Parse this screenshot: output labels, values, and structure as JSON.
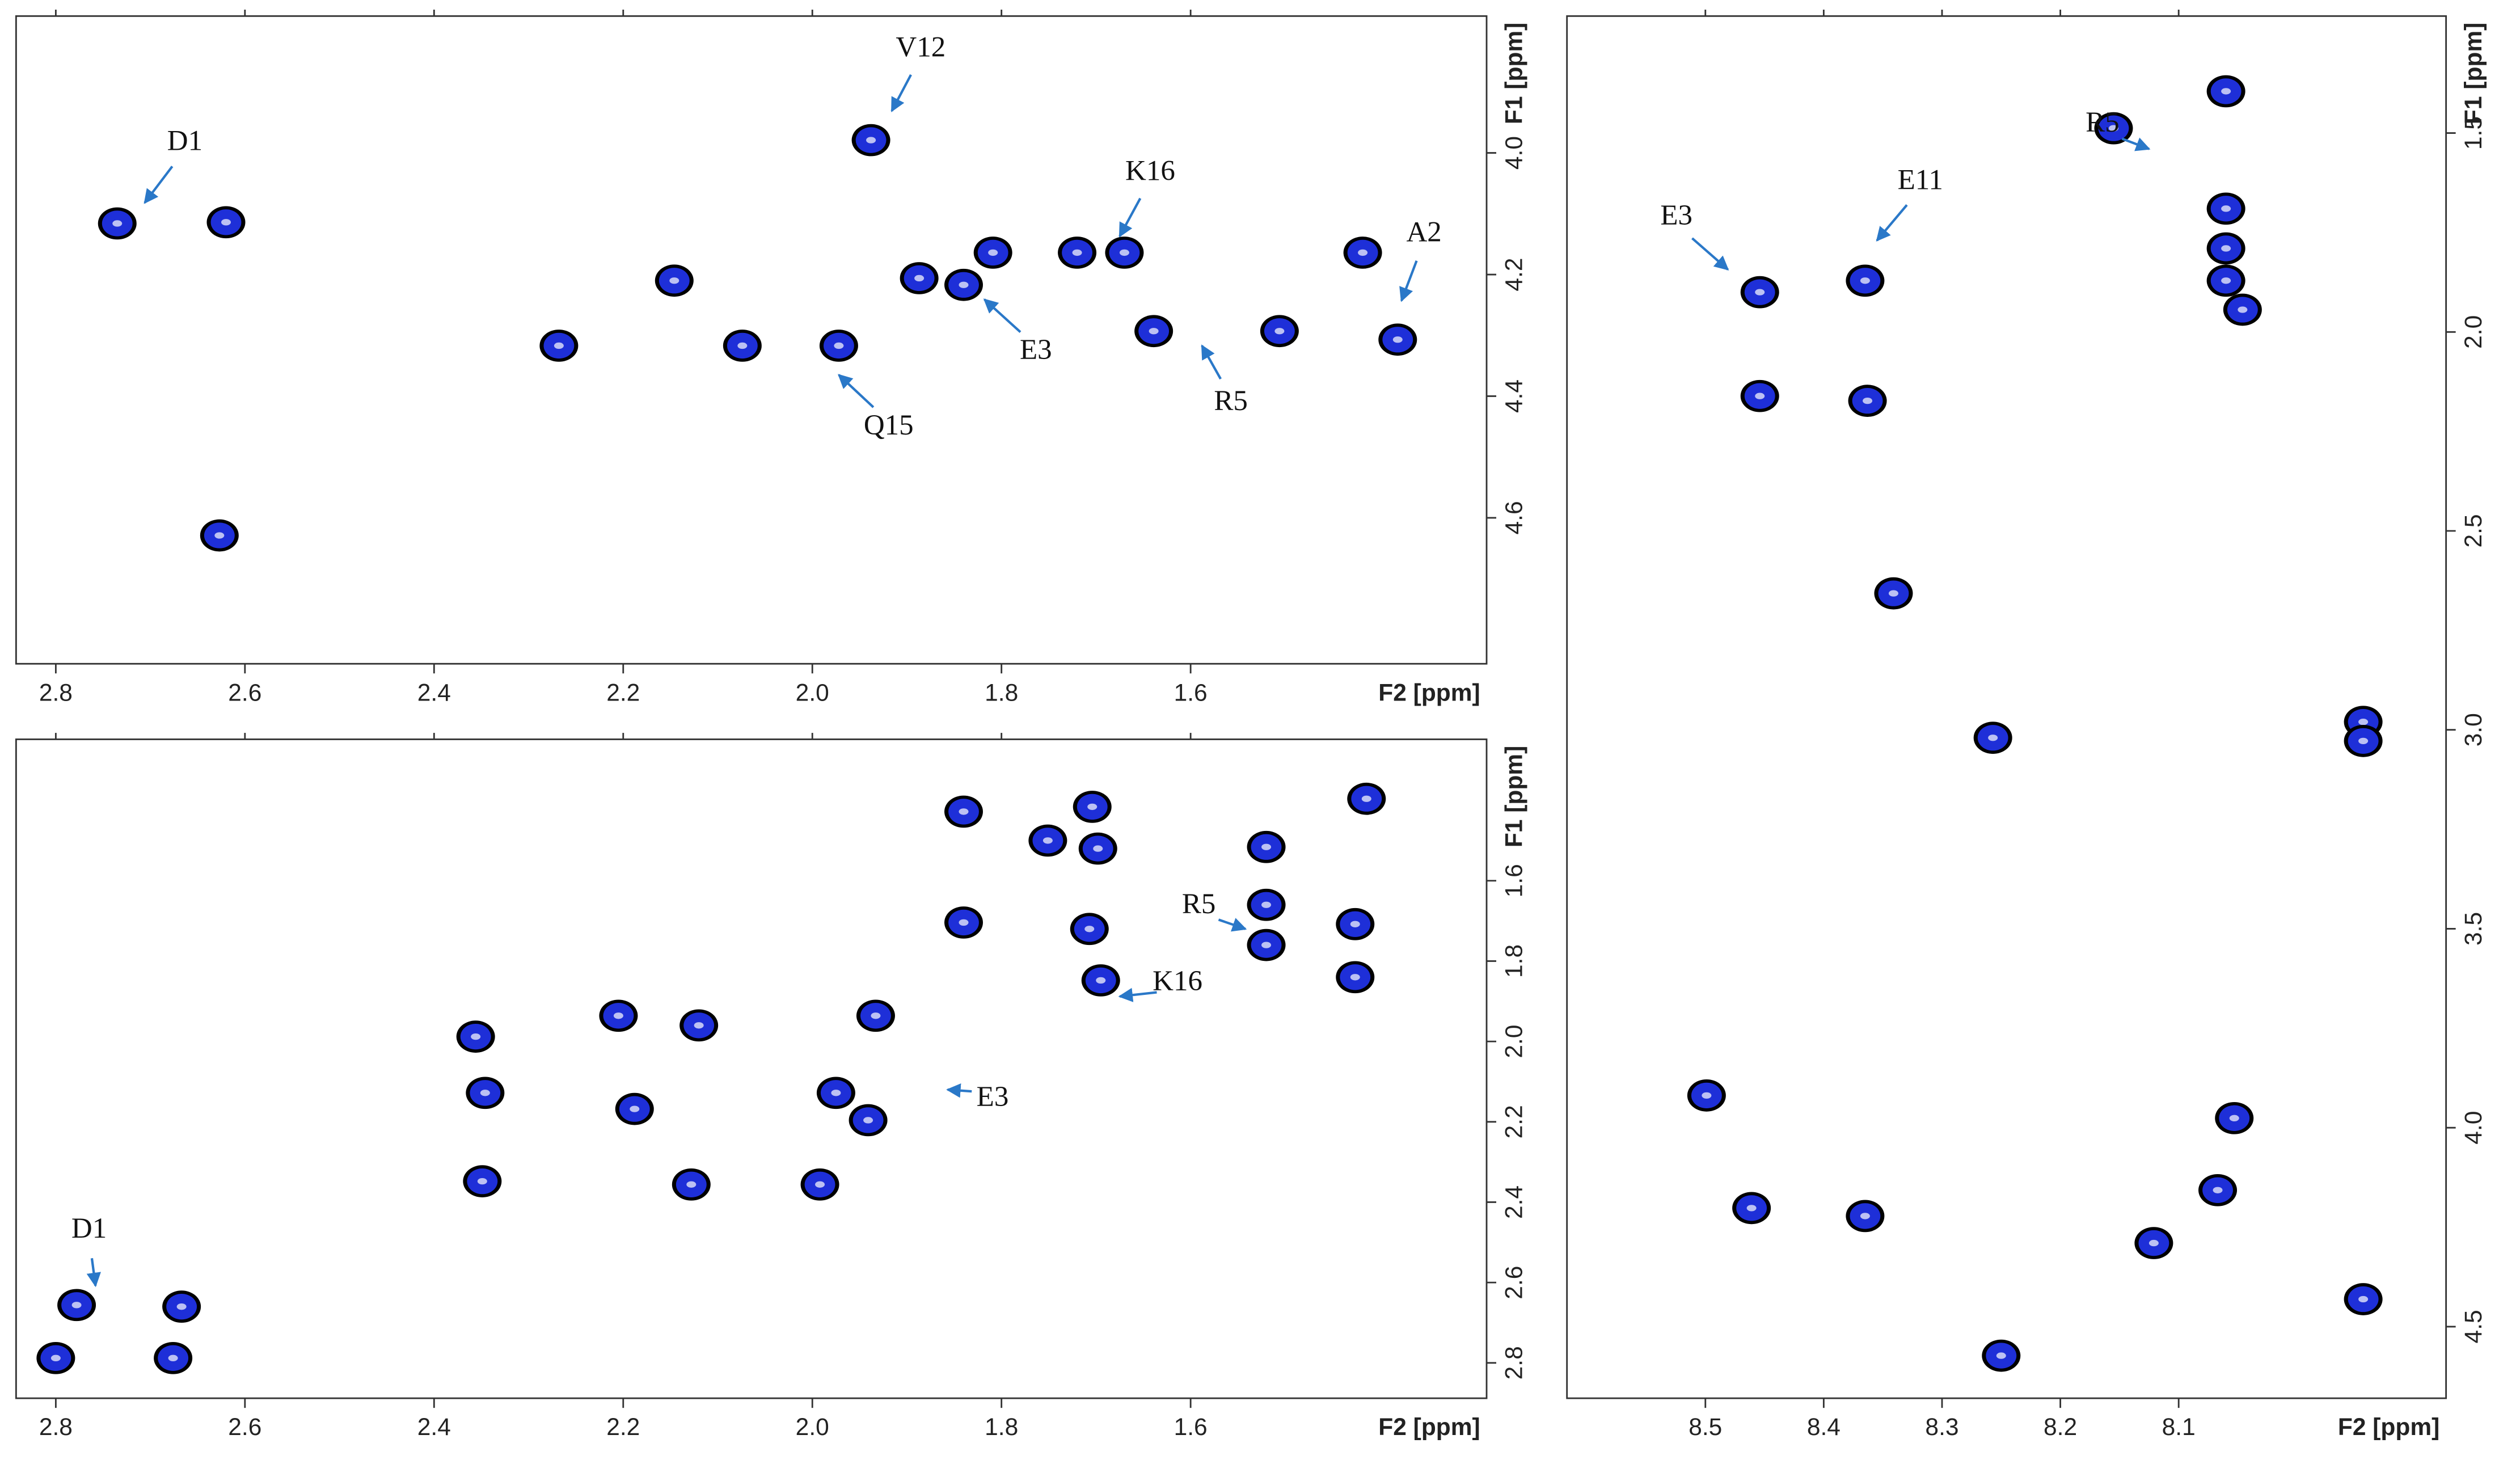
{
  "chart_data": [
    {
      "type": "scatter",
      "xlabel": "F2 [ppm]",
      "ylabel": "F1 [ppm]",
      "color": "#1e2fd8",
      "outline": "#000000",
      "xlim": [
        2.842,
        1.287
      ],
      "ylim": [
        3.775,
        4.84
      ],
      "xticks": [
        2.8,
        2.6,
        2.4,
        2.2,
        {
          "value": 2,
          "label": "2.0"
        },
        1.8,
        1.6
      ],
      "yticks": [
        {
          "value": 4,
          "label": "4.0"
        },
        4.2,
        4.4,
        4.6
      ],
      "x": [
        2.735,
        2.62,
        2.146,
        2.268,
        1.972,
        1.938,
        1.887,
        1.84,
        1.809,
        1.67,
        1.72,
        2.074,
        1.639,
        1.506,
        1.381,
        1.418,
        2.627
      ],
      "values": [
        4.116,
        4.114,
        4.21,
        4.317,
        4.317,
        3.979,
        4.206,
        4.217,
        4.164,
        4.164,
        4.164,
        4.317,
        4.293,
        4.293,
        4.307,
        4.164,
        4.629
      ],
      "annotations": [
        {
          "text": "D1",
          "x": 2.706,
          "y": 4.082
        },
        {
          "text": "V12",
          "x": 1.916,
          "y": 3.931
        },
        {
          "text": "K16",
          "x": 1.675,
          "y": 4.137
        },
        {
          "text": "A2",
          "x": 1.377,
          "y": 4.243
        },
        {
          "text": "E3",
          "x": 1.818,
          "y": 4.241
        },
        {
          "text": "R5",
          "x": 1.588,
          "y": 4.317
        },
        {
          "text": "Q15",
          "x": 1.972,
          "y": 4.365
        }
      ]
    },
    {
      "type": "scatter",
      "xlabel": "F2 [ppm]",
      "ylabel": "F1 [ppm]",
      "color": "#1e2fd8",
      "outline": "#000000",
      "xlim": [
        2.842,
        1.287
      ],
      "ylim": [
        1.248,
        2.888
      ],
      "xticks": [
        2.8,
        2.6,
        2.4,
        2.2,
        {
          "value": 2,
          "label": "2.0"
        },
        1.8,
        1.6
      ],
      "yticks": [
        1.6,
        1.8,
        {
          "value": 2,
          "label": "2.0"
        },
        2.2,
        2.4,
        2.6,
        2.8
      ],
      "x": [
        2.8,
        2.778,
        2.676,
        2.667,
        2.356,
        2.346,
        2.349,
        2.205,
        2.12,
        2.188,
        2.128,
        1.992,
        1.975,
        1.933,
        1.941,
        1.84,
        1.84,
        1.751,
        1.704,
        1.698,
        1.707,
        1.695,
        1.52,
        1.52,
        1.52,
        1.426,
        1.426,
        1.414
      ],
      "values": [
        2.788,
        2.656,
        2.788,
        2.66,
        1.988,
        2.128,
        2.348,
        1.936,
        1.96,
        2.168,
        2.356,
        2.356,
        2.128,
        1.936,
        2.196,
        1.428,
        1.704,
        1.5,
        1.416,
        1.52,
        1.72,
        1.848,
        1.516,
        1.66,
        1.76,
        1.708,
        1.84,
        1.396
      ],
      "annotations": [
        {
          "text": "R5",
          "x": 1.542,
          "y": 1.72
        },
        {
          "text": "K16",
          "x": 1.675,
          "y": 1.888
        },
        {
          "text": "E3",
          "x": 1.857,
          "y": 2.12
        },
        {
          "text": "D1",
          "x": 2.758,
          "y": 2.608
        }
      ]
    },
    {
      "type": "scatter",
      "xlabel": "F2 [ppm]",
      "ylabel": "F1 [ppm]",
      "color": "#1e2fd8",
      "outline": "#000000",
      "xlim": [
        8.617,
        7.874
      ],
      "ylim": [
        1.206,
        4.68
      ],
      "xticks": [
        8.5,
        8.4,
        8.3,
        8.2,
        8.1
      ],
      "yticks": [
        1.5,
        {
          "value": 2,
          "label": "2.0"
        },
        2.5,
        {
          "value": 3,
          "label": "3.0"
        },
        3.5,
        {
          "value": 4,
          "label": "4.0"
        },
        4.5
      ],
      "x": [
        8.06,
        8.155,
        8.06,
        8.06,
        8.06,
        8.046,
        8.454,
        8.365,
        8.363,
        8.454,
        8.257,
        7.944,
        7.944,
        8.499,
        8.053,
        8.067,
        8.461,
        8.365,
        8.121,
        8.25,
        7.944,
        8.341
      ],
      "values": [
        1.395,
        1.488,
        1.69,
        1.79,
        1.871,
        1.944,
        1.9,
        1.871,
        2.173,
        2.161,
        3.02,
        2.98,
        3.028,
        3.919,
        3.976,
        4.157,
        4.202,
        4.222,
        4.29,
        4.573,
        4.431,
        2.657
      ],
      "annotations": [
        {
          "text": "R5",
          "x": 8.125,
          "y": 1.54
        },
        {
          "text": "E3",
          "x": 8.481,
          "y": 1.843
        },
        {
          "text": "E11",
          "x": 8.355,
          "y": 1.77
        }
      ]
    }
  ]
}
